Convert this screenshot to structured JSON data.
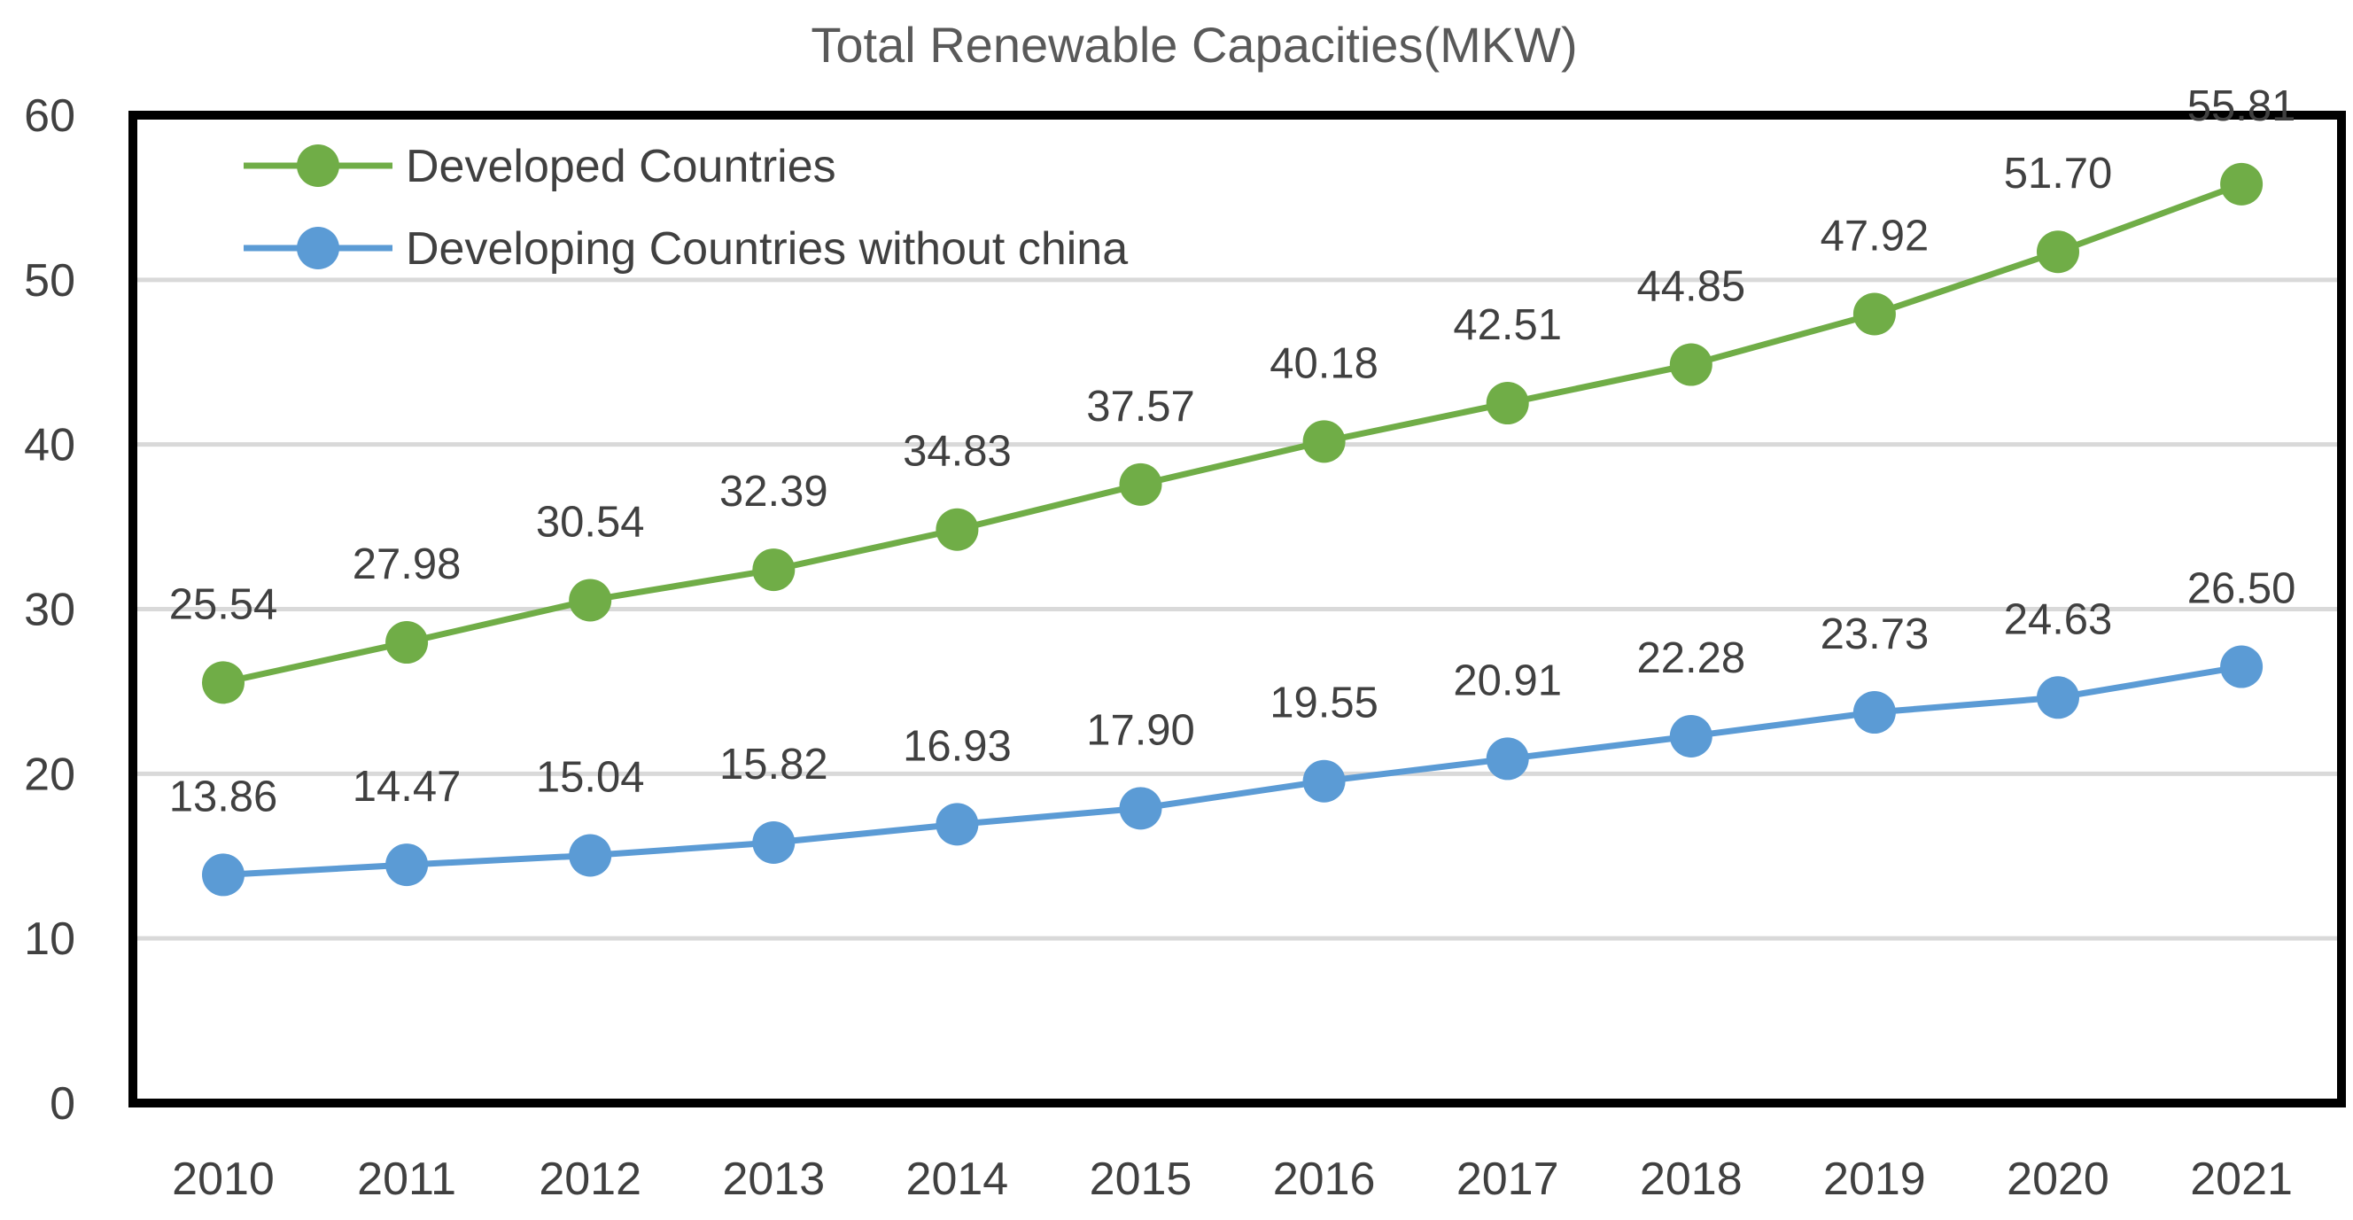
{
  "chart_data": {
    "type": "line",
    "title": "Total Renewable Capacities(MKW)",
    "xlabel": "",
    "ylabel": "",
    "ylim": [
      0,
      60
    ],
    "yticks": [
      "0",
      "10",
      "20",
      "30",
      "40",
      "50",
      "60"
    ],
    "grid": true,
    "legend_position": "top-left",
    "categories": [
      "2010",
      "2011",
      "2012",
      "2013",
      "2014",
      "2015",
      "2016",
      "2017",
      "2018",
      "2019",
      "2020",
      "2021"
    ],
    "series": [
      {
        "name": "Developed Countries",
        "color": "#70AD47",
        "values": [
          25.54,
          27.98,
          30.54,
          32.39,
          34.83,
          37.57,
          40.18,
          42.51,
          44.85,
          47.92,
          51.7,
          55.81
        ],
        "labels": [
          "25.54",
          "27.98",
          "30.54",
          "32.39",
          "34.83",
          "37.57",
          "40.18",
          "42.51",
          "44.85",
          "47.92",
          "51.70",
          "55.81"
        ]
      },
      {
        "name": "Developing Countries without china",
        "color": "#5B9BD5",
        "values": [
          13.86,
          14.47,
          15.04,
          15.82,
          16.93,
          17.9,
          19.55,
          20.91,
          22.28,
          23.73,
          24.63,
          26.5
        ],
        "labels": [
          "13.86",
          "14.47",
          "15.04",
          "15.82",
          "16.93",
          "17.90",
          "19.55",
          "20.91",
          "22.28",
          "23.73",
          "24.63",
          "26.50"
        ]
      }
    ],
    "gridline_color": "#D9D9D9",
    "frame_color": "#000000"
  }
}
